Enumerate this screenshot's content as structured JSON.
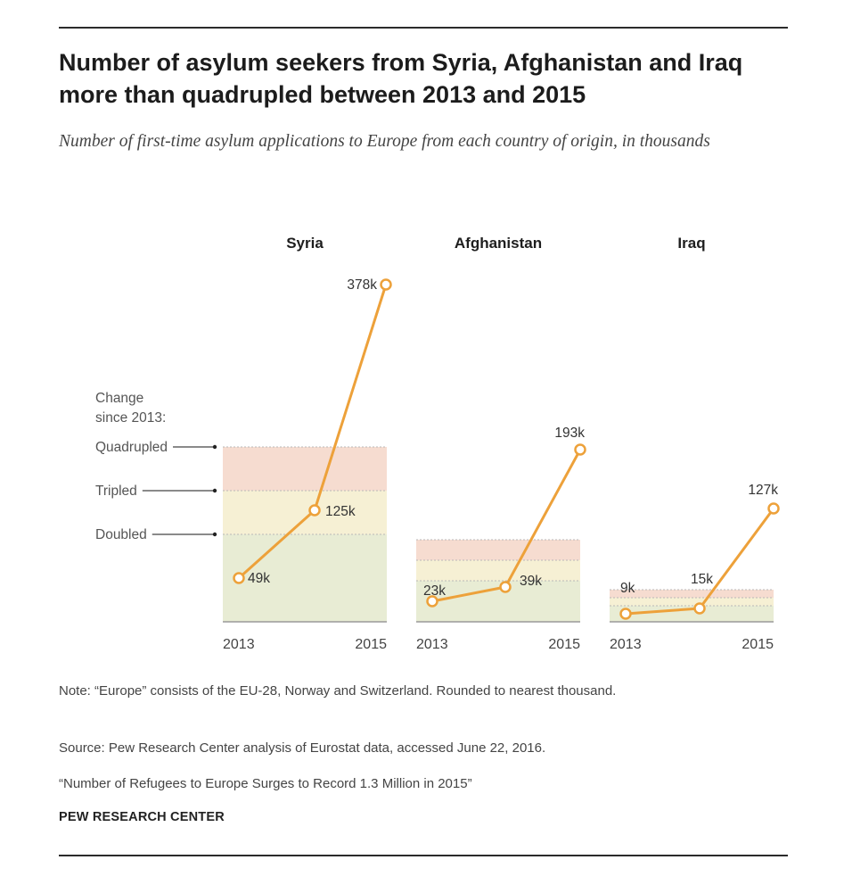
{
  "header": {
    "title": "Number of asylum seekers from Syria, Afghanistan  and Iraq more than quadrupled between 2013 and 2015",
    "subtitle": "Number of first-time asylum applications to Europe from each country of origin, in thousands"
  },
  "chart_data": {
    "type": "line",
    "x": [
      "2013",
      "2014",
      "2015"
    ],
    "x_tick_labels": [
      "2013",
      "2015"
    ],
    "legend": {
      "title": "Change since 2013:",
      "bands": [
        "Quadrupled",
        "Tripled",
        "Doubled"
      ]
    },
    "panels": [
      {
        "name": "Syria",
        "values": [
          49,
          125,
          378
        ],
        "labels": [
          "49k",
          "125k",
          "378k"
        ]
      },
      {
        "name": "Afghanistan",
        "values": [
          23,
          39,
          193
        ],
        "labels": [
          "23k",
          "39k",
          "193k"
        ]
      },
      {
        "name": "Iraq",
        "values": [
          9,
          15,
          127
        ],
        "labels": [
          "9k",
          "15k",
          "127k"
        ]
      }
    ],
    "colors": {
      "line": "#eda13a",
      "marker_fill": "#ffffff",
      "band_doubled": "#e8ecd4",
      "band_tripled": "#f6f0d4",
      "band_quadrupled": "#f6dcd0"
    }
  },
  "footer": {
    "note": "Note: “Europe” consists of the EU-28, Norway and Switzerland. Rounded to nearest thousand.",
    "source": "Source: Pew Research Center analysis of Eurostat data, accessed June 22, 2016.",
    "report": "“Number of Refugees to Europe Surges to Record 1.3 Million in 2015”",
    "brand": "PEW RESEARCH CENTER"
  }
}
